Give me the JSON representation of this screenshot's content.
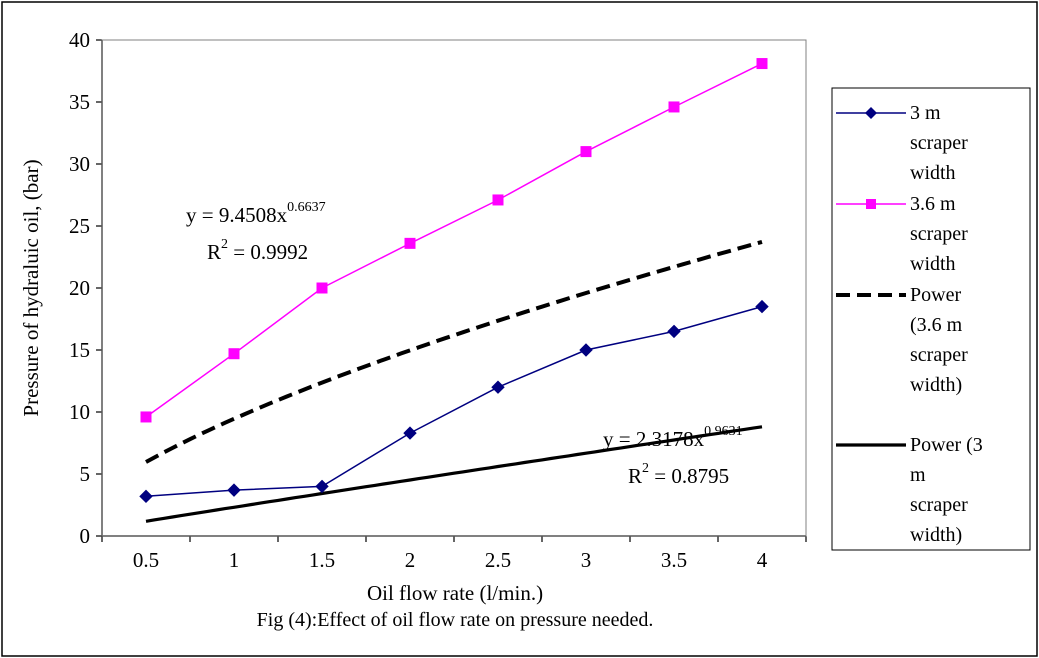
{
  "chart_data": {
    "type": "line",
    "title": "",
    "caption": "Fig (4):Effect of oil flow rate on pressure needed.",
    "xlabel": "Oil flow rate (l/min.)",
    "ylabel": "Pressure of hydraluic oil, (bar)",
    "categories": [
      "0.5",
      "1",
      "1.5",
      "2",
      "2.5",
      "3",
      "3.5",
      "4"
    ],
    "x": [
      0.5,
      1,
      1.5,
      2,
      2.5,
      3,
      3.5,
      4
    ],
    "ylim": [
      0,
      40
    ],
    "yticks": [
      "0",
      "5",
      "10",
      "15",
      "20",
      "25",
      "30",
      "35",
      "40"
    ],
    "grid": false,
    "legend_position": "right",
    "series": [
      {
        "name": "3 m scraper width",
        "legend_lines": [
          "3 m",
          "scraper",
          "width"
        ],
        "color": "#000080",
        "marker": "diamond",
        "values": [
          3.2,
          3.7,
          4.0,
          8.3,
          12.0,
          15.0,
          16.5,
          18.5
        ]
      },
      {
        "name": "3.6 m scraper width",
        "legend_lines": [
          "3.6 m",
          "scraper",
          "width"
        ],
        "color": "#ff00ff",
        "marker": "square",
        "values": [
          9.6,
          14.7,
          20.0,
          23.6,
          27.1,
          31.0,
          34.6,
          38.1
        ]
      }
    ],
    "trendlines": [
      {
        "name": "Power (3.6 m scraper width)",
        "legend_lines": [
          "Power",
          "(3.6 m",
          "scraper",
          "width)"
        ],
        "style": "dashed",
        "color": "#000000",
        "coef": 9.4508,
        "exp": 0.6637,
        "equation_base": "y = 9.4508x",
        "equation_exp": "0.6637",
        "r2_label": "R",
        "r2_sup": "2",
        "r2_value": " = 0.9992"
      },
      {
        "name": "Power (3 m scraper width)",
        "legend_lines": [
          "Power (3",
          "m",
          "scraper",
          "width)"
        ],
        "style": "solid",
        "color": "#000000",
        "coef": 2.3178,
        "exp": 0.9631,
        "equation_base": "y = 2.3178x",
        "equation_exp": "0.9631",
        "r2_label": "R",
        "r2_sup": "2",
        "r2_value": " = 0.8795"
      }
    ]
  }
}
